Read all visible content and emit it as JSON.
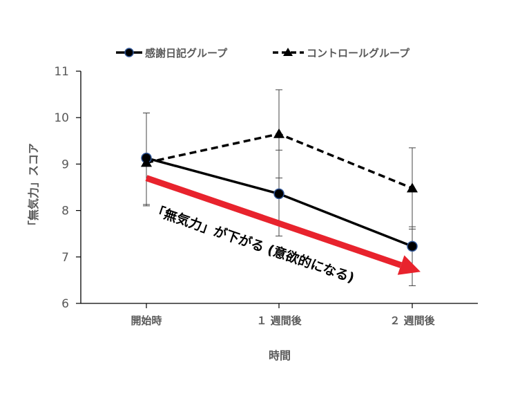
{
  "chart_data": {
    "type": "line",
    "categories": [
      "開始時",
      "１ 週間後",
      "２ 週間後"
    ],
    "series": [
      {
        "name": "感謝日記グループ",
        "values": [
          9.13,
          8.36,
          7.23
        ],
        "error_upper": [
          10.1,
          9.3,
          7.65
        ],
        "error_lower": [
          8.13,
          7.45,
          6.38
        ],
        "color": "#000000",
        "line_style": "solid",
        "marker": "circle",
        "marker_edge_color": "#2f5597"
      },
      {
        "name": "コントロールグループ",
        "values": [
          9.03,
          9.65,
          8.48
        ],
        "error_upper": [
          10.1,
          10.6,
          9.35
        ],
        "error_lower": [
          8.1,
          8.7,
          7.6
        ],
        "color": "#000000",
        "line_style": "dashed",
        "marker": "triangle"
      }
    ],
    "yticks": [
      6,
      7,
      8,
      9,
      10,
      11
    ],
    "ylim": [
      6,
      11
    ],
    "xlabel": "時間",
    "ylabel": "「無気力」スコア",
    "legend_position": "top",
    "grid": false,
    "annotation": {
      "text": "「無気力」が下がる (意欲的になる)",
      "arrow_color": "#e8232d",
      "start": {
        "category_index": 0,
        "y": 8.7
      },
      "end": {
        "category_index": 2,
        "y": 6.68
      }
    }
  }
}
